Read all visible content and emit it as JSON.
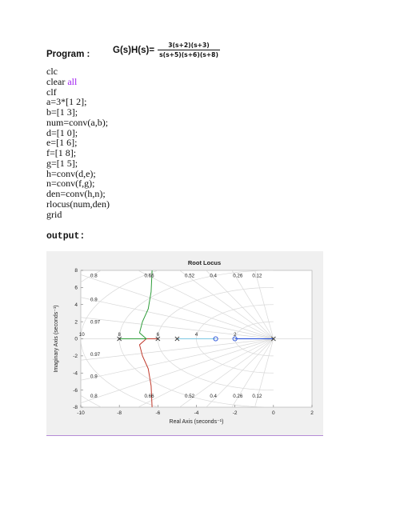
{
  "program_label": "Program :",
  "transfer_function": {
    "lhs": "G(s)H(s)=",
    "numerator": "3(s+2)(s+3)",
    "denominator": "s(s+5)(s+6)(s+8)"
  },
  "code_lines": [
    [
      {
        "t": "clc"
      }
    ],
    [
      {
        "t": "clear "
      },
      {
        "t": "all",
        "kw": true
      }
    ],
    [
      {
        "t": "clf"
      }
    ],
    [
      {
        "t": "a=3*[1 2];"
      }
    ],
    [
      {
        "t": "b=[1 3];"
      }
    ],
    [
      {
        "t": "num=conv(a,b);"
      }
    ],
    [
      {
        "t": "d=[1 0];"
      }
    ],
    [
      {
        "t": "e=[1 6];"
      }
    ],
    [
      {
        "t": "f=[1 8];"
      }
    ],
    [
      {
        "t": "g=[1 5];"
      }
    ],
    [
      {
        "t": "h=conv(d,e);"
      }
    ],
    [
      {
        "t": "n=conv(f,g);"
      }
    ],
    [
      {
        "t": "den=conv(h,n);"
      }
    ],
    [
      {
        "t": "rlocus(num,den)"
      }
    ],
    [
      {
        "t": "grid"
      }
    ]
  ],
  "output_label": "output:",
  "chart_data": {
    "type": "scatter",
    "title": "Root Locus",
    "xlabel": "Real Axis (seconds⁻¹)",
    "ylabel": "Imaginary Axis (seconds⁻¹)",
    "xlim": [
      -10,
      2
    ],
    "ylim": [
      -8,
      8
    ],
    "xticks": [
      -10,
      -8,
      -6,
      -4,
      -2,
      0,
      2
    ],
    "yticks": [
      -8,
      -6,
      -4,
      -2,
      0,
      2,
      4,
      6,
      8
    ],
    "grid": true,
    "damping_labels": [
      {
        "value": "0.8",
        "x": -9.5,
        "y": 7.2
      },
      {
        "value": "0.66",
        "x": -6.7,
        "y": 7.2
      },
      {
        "value": "0.52",
        "x": -4.6,
        "y": 7.2
      },
      {
        "value": "0.4",
        "x": -3.3,
        "y": 7.2
      },
      {
        "value": "0.26",
        "x": -2.1,
        "y": 7.2
      },
      {
        "value": "0.12",
        "x": -1.1,
        "y": 7.2
      },
      {
        "value": "0.9",
        "x": -9.5,
        "y": 4.4
      },
      {
        "value": "0.97",
        "x": -9.5,
        "y": 1.8
      },
      {
        "value": "0.97",
        "x": -9.5,
        "y": -2.0
      },
      {
        "value": "0.9",
        "x": -9.5,
        "y": -4.6
      },
      {
        "value": "0.8",
        "x": -9.5,
        "y": -6.9
      },
      {
        "value": "0.66",
        "x": -6.7,
        "y": -6.9
      },
      {
        "value": "0.52",
        "x": -4.6,
        "y": -6.9
      },
      {
        "value": "0.4",
        "x": -3.3,
        "y": -6.9
      },
      {
        "value": "0.26",
        "x": -2.1,
        "y": -6.9
      },
      {
        "value": "0.12",
        "x": -1.1,
        "y": -6.9
      }
    ],
    "natural_freq_labels": [
      {
        "value": "10",
        "x": -9.95,
        "y": 0.35
      },
      {
        "value": "8",
        "x": -8.0,
        "y": 0.35
      },
      {
        "value": "6",
        "x": -6.0,
        "y": 0.35
      },
      {
        "value": "4",
        "x": -4.0,
        "y": 0.35
      },
      {
        "value": "2",
        "x": -2.0,
        "y": 0.35
      }
    ],
    "poles": [
      0,
      -5,
      -6,
      -8
    ],
    "zeros": [
      -2,
      -3
    ],
    "series": [
      {
        "color": "#1f4bd8",
        "points": [
          [
            0,
            0
          ],
          [
            -2,
            0
          ]
        ]
      },
      {
        "color": "#7ec8e3",
        "points": [
          [
            -3,
            0
          ],
          [
            -5,
            0
          ]
        ]
      },
      {
        "color": "#c0392b",
        "points": [
          [
            -6,
            0
          ],
          [
            -6.6,
            0
          ],
          [
            -6.95,
            -0.7
          ],
          [
            -6.8,
            -2.0
          ],
          [
            -6.5,
            -3.5
          ],
          [
            -6.35,
            -5.5
          ],
          [
            -6.3,
            -8
          ]
        ]
      },
      {
        "color": "#2e9d3a",
        "points": [
          [
            -8,
            0
          ],
          [
            -6.6,
            0
          ],
          [
            -6.95,
            0.7
          ],
          [
            -6.8,
            2.0
          ],
          [
            -6.5,
            3.5
          ],
          [
            -6.35,
            5.5
          ],
          [
            -6.3,
            8
          ]
        ]
      }
    ],
    "colors": {
      "zero_marker": "#1f4bd8",
      "grid": "#d8d8d8",
      "frame_bg": "#f0f0f0"
    }
  }
}
